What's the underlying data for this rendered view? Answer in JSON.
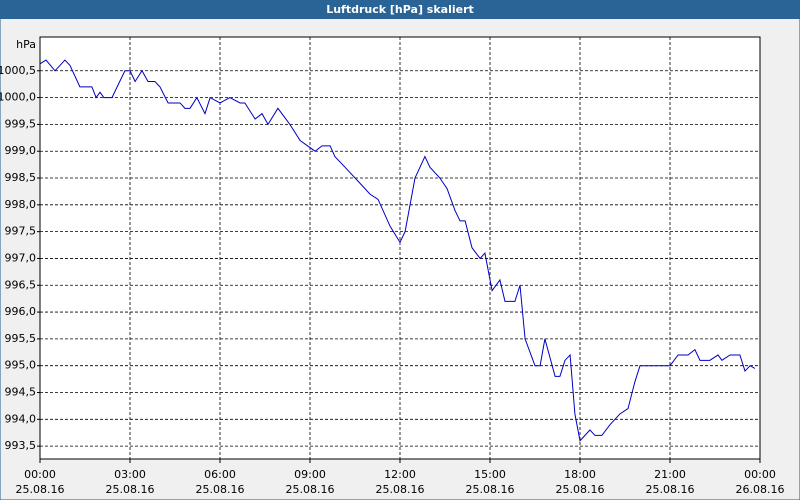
{
  "chart_data": {
    "type": "line",
    "title": "Luftdruck [hPa] skaliert",
    "y_unit": "hPa",
    "x": [
      0,
      0.2,
      0.5,
      0.83,
      1.0,
      1.33,
      1.73,
      1.87,
      2.0,
      2.13,
      2.4,
      2.83,
      3.0,
      3.17,
      3.4,
      3.6,
      3.83,
      4.0,
      4.27,
      4.67,
      4.83,
      5.0,
      5.23,
      5.5,
      5.67,
      6.0,
      6.33,
      6.67,
      6.83,
      7.17,
      7.4,
      7.6,
      7.93,
      8.33,
      8.67,
      9.17,
      9.4,
      9.67,
      9.83,
      10.17,
      10.67,
      11.0,
      11.27,
      11.67,
      12.0,
      12.17,
      12.5,
      12.83,
      13.0,
      13.33,
      13.57,
      13.83,
      14.0,
      14.17,
      14.4,
      14.67,
      14.83,
      15.07,
      15.33,
      15.5,
      15.83,
      16.0,
      16.17,
      16.5,
      16.67,
      16.83,
      17.17,
      17.33,
      17.5,
      17.67,
      17.83,
      18.0,
      18.33,
      18.5,
      18.73,
      19.0,
      19.33,
      19.6,
      19.83,
      20.0,
      20.67,
      21.0,
      21.27,
      21.6,
      21.83,
      22.0,
      22.33,
      22.6,
      22.73,
      23.0,
      23.33,
      23.5,
      23.67,
      23.83
    ],
    "series": [
      {
        "name": "Luftdruck",
        "color": "#0000c0",
        "values": [
          1000.63,
          1000.7,
          1000.5,
          1000.7,
          1000.6,
          1000.2,
          1000.2,
          1000.0,
          1000.1,
          1000.0,
          1000.0,
          1000.5,
          1000.5,
          1000.3,
          1000.5,
          1000.3,
          1000.3,
          1000.2,
          999.9,
          999.9,
          999.8,
          999.8,
          1000.0,
          999.7,
          1000.0,
          999.9,
          1000.0,
          999.9,
          999.9,
          999.6,
          999.7,
          999.5,
          999.8,
          999.5,
          999.2,
          999.0,
          999.1,
          999.1,
          998.9,
          998.7,
          998.4,
          998.2,
          998.1,
          997.6,
          997.3,
          997.5,
          998.5,
          998.9,
          998.7,
          998.5,
          998.3,
          997.9,
          997.7,
          997.7,
          997.2,
          997.0,
          997.1,
          996.4,
          996.6,
          996.2,
          996.2,
          996.5,
          995.5,
          995.0,
          995.0,
          995.5,
          994.8,
          994.8,
          995.1,
          995.2,
          994.1,
          993.6,
          993.8,
          993.7,
          993.7,
          993.9,
          994.1,
          994.2,
          994.7,
          995.0,
          995.0,
          995.0,
          995.2,
          995.2,
          995.3,
          995.1,
          995.1,
          995.2,
          995.1,
          995.2,
          995.2,
          994.9,
          995.0,
          994.95
        ]
      }
    ],
    "xlim": [
      0,
      24
    ],
    "xticks": [
      {
        "value": 0,
        "label": "00:00",
        "date": "25.08.16"
      },
      {
        "value": 3,
        "label": "03:00",
        "date": "25.08.16"
      },
      {
        "value": 6,
        "label": "06:00",
        "date": "25.08.16"
      },
      {
        "value": 9,
        "label": "09:00",
        "date": "25.08.16"
      },
      {
        "value": 12,
        "label": "12:00",
        "date": "25.08.16"
      },
      {
        "value": 15,
        "label": "15:00",
        "date": "25.08.16"
      },
      {
        "value": 18,
        "label": "18:00",
        "date": "25.08.16"
      },
      {
        "value": 21,
        "label": "21:00",
        "date": "25.08.16"
      },
      {
        "value": 24,
        "label": "00:00",
        "date": "26.08.16"
      }
    ],
    "ylim": [
      993.26,
      1001.13
    ],
    "yticks": [
      {
        "value": 993.5,
        "label": "993,5"
      },
      {
        "value": 994,
        "label": "994,0"
      },
      {
        "value": 994.5,
        "label": "994,5"
      },
      {
        "value": 995,
        "label": "995,0"
      },
      {
        "value": 995.5,
        "label": "995,5"
      },
      {
        "value": 996,
        "label": "996,0"
      },
      {
        "value": 996.5,
        "label": "996,5"
      },
      {
        "value": 997,
        "label": "997,0"
      },
      {
        "value": 997.5,
        "label": "997,5"
      },
      {
        "value": 998,
        "label": "998,0"
      },
      {
        "value": 998.5,
        "label": "998,5"
      },
      {
        "value": 999,
        "label": "999,0"
      },
      {
        "value": 999.5,
        "label": "999,5"
      },
      {
        "value": 1000,
        "label": "1000,0"
      },
      {
        "value": 1000.5,
        "label": "1000,5"
      }
    ],
    "grid": true
  }
}
